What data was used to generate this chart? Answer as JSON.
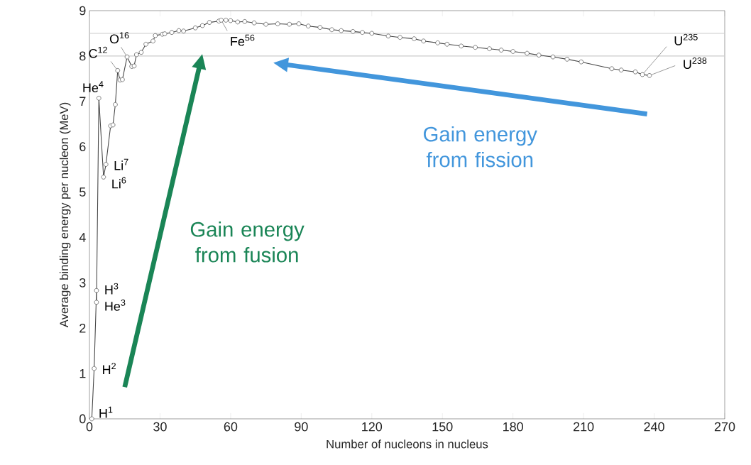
{
  "chart_data": {
    "type": "line",
    "xlabel": "Number of nucleons in nucleus",
    "ylabel": "Average binding energy per nucleon (MeV)",
    "x": [
      1,
      2,
      3,
      3,
      4,
      6,
      7,
      9,
      10,
      11,
      12,
      13,
      14,
      16,
      18,
      19,
      20,
      22,
      24,
      27,
      28,
      31,
      32,
      35,
      38,
      40,
      45,
      48,
      51,
      55,
      56,
      58,
      60,
      63,
      66,
      70,
      75,
      80,
      85,
      89,
      93,
      98,
      103,
      107,
      112,
      116,
      120,
      127,
      132,
      138,
      142,
      148,
      152,
      158,
      164,
      170,
      175,
      180,
      186,
      191,
      197,
      203,
      209,
      222,
      226,
      232,
      235,
      238
    ],
    "series": [
      {
        "color": "#444444",
        "values": [
          0,
          1.11,
          2.83,
          2.57,
          7.07,
          5.33,
          5.61,
          6.46,
          6.48,
          6.93,
          7.68,
          7.47,
          7.48,
          7.98,
          7.77,
          7.78,
          8.03,
          8.08,
          8.26,
          8.33,
          8.45,
          8.48,
          8.49,
          8.52,
          8.56,
          8.55,
          8.62,
          8.67,
          8.74,
          8.77,
          8.79,
          8.79,
          8.78,
          8.75,
          8.76,
          8.73,
          8.7,
          8.71,
          8.7,
          8.71,
          8.66,
          8.63,
          8.58,
          8.56,
          8.54,
          8.52,
          8.5,
          8.44,
          8.41,
          8.38,
          8.33,
          8.29,
          8.26,
          8.22,
          8.19,
          8.16,
          8.13,
          8.1,
          8.06,
          8.02,
          7.98,
          7.93,
          7.87,
          7.72,
          7.69,
          7.65,
          7.59,
          7.57
        ]
      }
    ],
    "marker": "circle",
    "line_style": "solid",
    "xlim": [
      0,
      270
    ],
    "xticks": [
      0,
      30,
      60,
      90,
      120,
      150,
      180,
      210,
      240,
      270
    ],
    "ylim": [
      0,
      9
    ],
    "yticks": [
      0,
      1,
      2,
      3,
      4,
      5,
      6,
      7,
      8,
      9
    ],
    "ref_lines": [
      {
        "axis": "y",
        "value": 8.5,
        "color": "#cccccc"
      },
      {
        "axis": "y",
        "value": 8,
        "color": "#cccccc"
      }
    ],
    "annotations": [
      {
        "text": "H$^{1}$",
        "x": 1,
        "y": 0
      },
      {
        "text": "H$^{2}$",
        "x": 2,
        "y": 1.11
      },
      {
        "text": "H$^{3}$",
        "x": 3,
        "y": 2.83
      },
      {
        "text": "He$^{3}$",
        "x": 3,
        "y": 2.57
      },
      {
        "text": "He$^{4}$",
        "x": 4,
        "y": 7.07
      },
      {
        "text": "Li$^{6}$",
        "x": 6,
        "y": 5.33
      },
      {
        "text": "Li$^{7}$",
        "x": 7,
        "y": 5.61
      },
      {
        "text": "C$^{12}$",
        "x": 12,
        "y": 7.68
      },
      {
        "text": "O$^{16}$",
        "x": 16,
        "y": 7.98
      },
      {
        "text": "Fe$^{56}$",
        "x": 56,
        "y": 8.79
      },
      {
        "text": "U$^{235}$",
        "x": 235,
        "y": 7.59
      },
      {
        "text": "U$^{238}$",
        "x": 238,
        "y": 7.57
      },
      "Gain energy from fusion",
      "Gain energy from fission"
    ]
  }
}
